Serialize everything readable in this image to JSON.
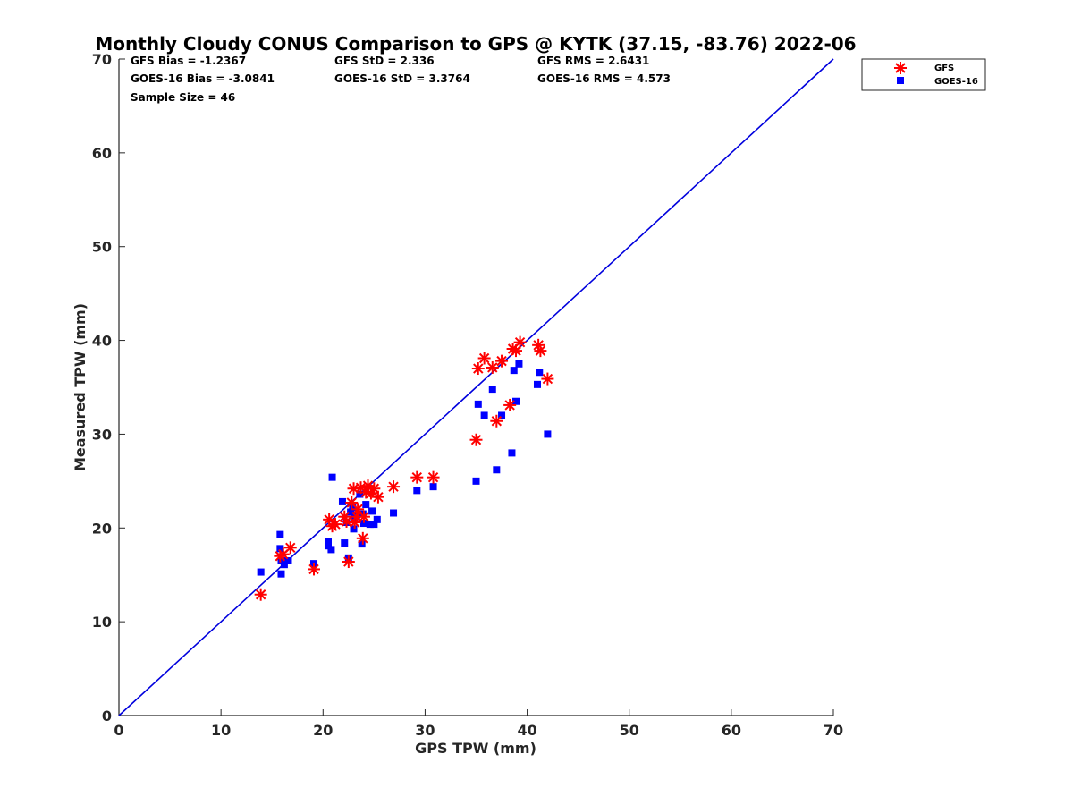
{
  "chart_data": {
    "type": "scatter",
    "title": "Monthly Cloudy CONUS Comparison to GPS @ KYTK (37.15, -83.76) 2022-06",
    "xlabel": "GPS TPW (mm)",
    "ylabel": "Measured TPW (mm)",
    "xlim": [
      0,
      70
    ],
    "ylim": [
      0,
      70
    ],
    "xticks": [
      "0",
      "10",
      "20",
      "30",
      "40",
      "50",
      "60",
      "70"
    ],
    "yticks": [
      "0",
      "10",
      "20",
      "30",
      "40",
      "50",
      "60",
      "70"
    ],
    "reference_line": {
      "name": "1:1 line",
      "color": "#0000dd",
      "x": [
        0,
        70
      ],
      "y": [
        0,
        70
      ]
    },
    "stats": {
      "gfs_bias": "GFS Bias = -1.2367",
      "goes_bias": "GOES-16 Bias = -3.0841",
      "sample_size": "Sample Size = 46",
      "gfs_std": "GFS StD = 2.336",
      "goes_std": "GOES-16 StD = 3.3764",
      "gfs_rms": "GFS RMS = 2.6431",
      "goes_rms": "GOES-16 RMS = 4.573"
    },
    "legend_position": "top-right outside",
    "series": [
      {
        "name": "GFS",
        "marker": "asterisk",
        "color": "#ff0000",
        "points": [
          [
            13.9,
            12.9
          ],
          [
            15.8,
            17.0
          ],
          [
            16.1,
            17.2
          ],
          [
            16.8,
            17.9
          ],
          [
            19.1,
            15.6
          ],
          [
            20.6,
            20.9
          ],
          [
            20.9,
            20.2
          ],
          [
            21.2,
            20.4
          ],
          [
            22.1,
            21.2
          ],
          [
            22.3,
            20.7
          ],
          [
            22.5,
            16.4
          ],
          [
            22.8,
            22.7
          ],
          [
            23.0,
            24.2
          ],
          [
            23.1,
            20.6
          ],
          [
            23.3,
            21.2
          ],
          [
            23.4,
            22.0
          ],
          [
            23.7,
            24.3
          ],
          [
            23.9,
            18.9
          ],
          [
            24.0,
            21.2
          ],
          [
            24.2,
            23.8
          ],
          [
            24.4,
            24.5
          ],
          [
            24.7,
            23.7
          ],
          [
            25.0,
            24.2
          ],
          [
            25.4,
            23.3
          ],
          [
            26.9,
            24.4
          ],
          [
            29.2,
            25.4
          ],
          [
            30.8,
            25.4
          ],
          [
            35.0,
            29.4
          ],
          [
            35.2,
            37.0
          ],
          [
            35.8,
            38.1
          ],
          [
            36.6,
            37.1
          ],
          [
            37.0,
            31.4
          ],
          [
            37.5,
            37.8
          ],
          [
            38.3,
            33.1
          ],
          [
            38.6,
            39.1
          ],
          [
            38.9,
            38.9
          ],
          [
            39.3,
            39.8
          ],
          [
            41.1,
            39.5
          ],
          [
            41.3,
            38.9
          ],
          [
            42.0,
            35.9
          ]
        ]
      },
      {
        "name": "GOES-16",
        "marker": "square",
        "color": "#0000ff",
        "points": [
          [
            13.9,
            15.3
          ],
          [
            15.8,
            19.3
          ],
          [
            15.8,
            17.8
          ],
          [
            15.9,
            16.5
          ],
          [
            15.9,
            15.1
          ],
          [
            16.2,
            16.1
          ],
          [
            16.6,
            16.5
          ],
          [
            19.1,
            16.2
          ],
          [
            20.5,
            18.5
          ],
          [
            20.5,
            18.1
          ],
          [
            20.8,
            17.7
          ],
          [
            20.9,
            25.4
          ],
          [
            21.9,
            22.8
          ],
          [
            22.1,
            18.4
          ],
          [
            22.3,
            20.6
          ],
          [
            22.5,
            16.8
          ],
          [
            22.7,
            21.7
          ],
          [
            22.9,
            22.2
          ],
          [
            23.0,
            19.9
          ],
          [
            23.1,
            21.0
          ],
          [
            23.3,
            21.4
          ],
          [
            23.6,
            23.6
          ],
          [
            23.8,
            18.3
          ],
          [
            23.9,
            21.5
          ],
          [
            24.0,
            20.5
          ],
          [
            24.2,
            22.5
          ],
          [
            24.6,
            20.4
          ],
          [
            24.8,
            21.8
          ],
          [
            25.0,
            20.4
          ],
          [
            25.3,
            20.9
          ],
          [
            26.9,
            21.6
          ],
          [
            29.2,
            24.0
          ],
          [
            30.8,
            24.4
          ],
          [
            35.0,
            25.0
          ],
          [
            35.2,
            33.2
          ],
          [
            35.8,
            32.0
          ],
          [
            36.6,
            34.8
          ],
          [
            37.0,
            26.2
          ],
          [
            37.5,
            32.0
          ],
          [
            38.5,
            28.0
          ],
          [
            38.7,
            36.8
          ],
          [
            38.9,
            33.5
          ],
          [
            39.2,
            37.5
          ],
          [
            41.0,
            35.3
          ],
          [
            41.2,
            36.6
          ],
          [
            42.0,
            30.0
          ]
        ]
      }
    ]
  }
}
